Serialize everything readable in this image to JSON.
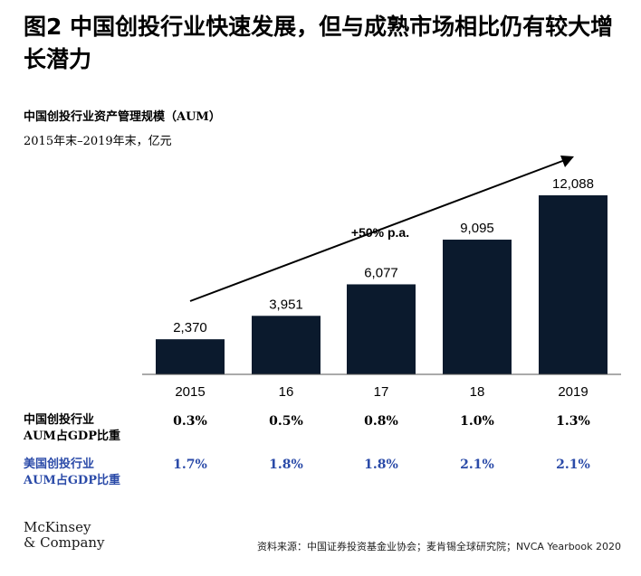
{
  "title": "图2 中国创投行业快速发展，但与成熟市场相比仍有较大增长潜力",
  "chart_data": {
    "type": "bar",
    "title": "中国创投行业资产管理规模（AUM）",
    "units": "2015年末–2019年末，亿元",
    "categories": [
      "2015",
      "16",
      "17",
      "18",
      "2019"
    ],
    "values": [
      2370,
      3951,
      6077,
      9095,
      12088
    ],
    "value_labels": [
      "2,370",
      "3,951",
      "6,077",
      "9,095",
      "12,088"
    ],
    "ylim": [
      0,
      12088
    ],
    "growth_annotation": "+50% p.a.",
    "bar_color": "#0b1a2d"
  },
  "table_rows": [
    {
      "label_line1": "中国创投行业",
      "label_line2": "AUM占GDP比重",
      "values": [
        "0.3%",
        "0.5%",
        "0.8%",
        "1.0%",
        "1.3%"
      ],
      "color": "#000000"
    },
    {
      "label_line1": "美国创投行业",
      "label_line2": "AUM占GDP比重",
      "values": [
        "1.7%",
        "1.8%",
        "1.8%",
        "2.1%",
        "2.1%"
      ],
      "color": "#2a4aa8"
    }
  ],
  "logo": {
    "line1": "McKinsey",
    "line2": "& Company"
  },
  "source": "资料来源：中国证券投资基金业协会；麦肯锡全球研究院；NVCA Yearbook 2020"
}
